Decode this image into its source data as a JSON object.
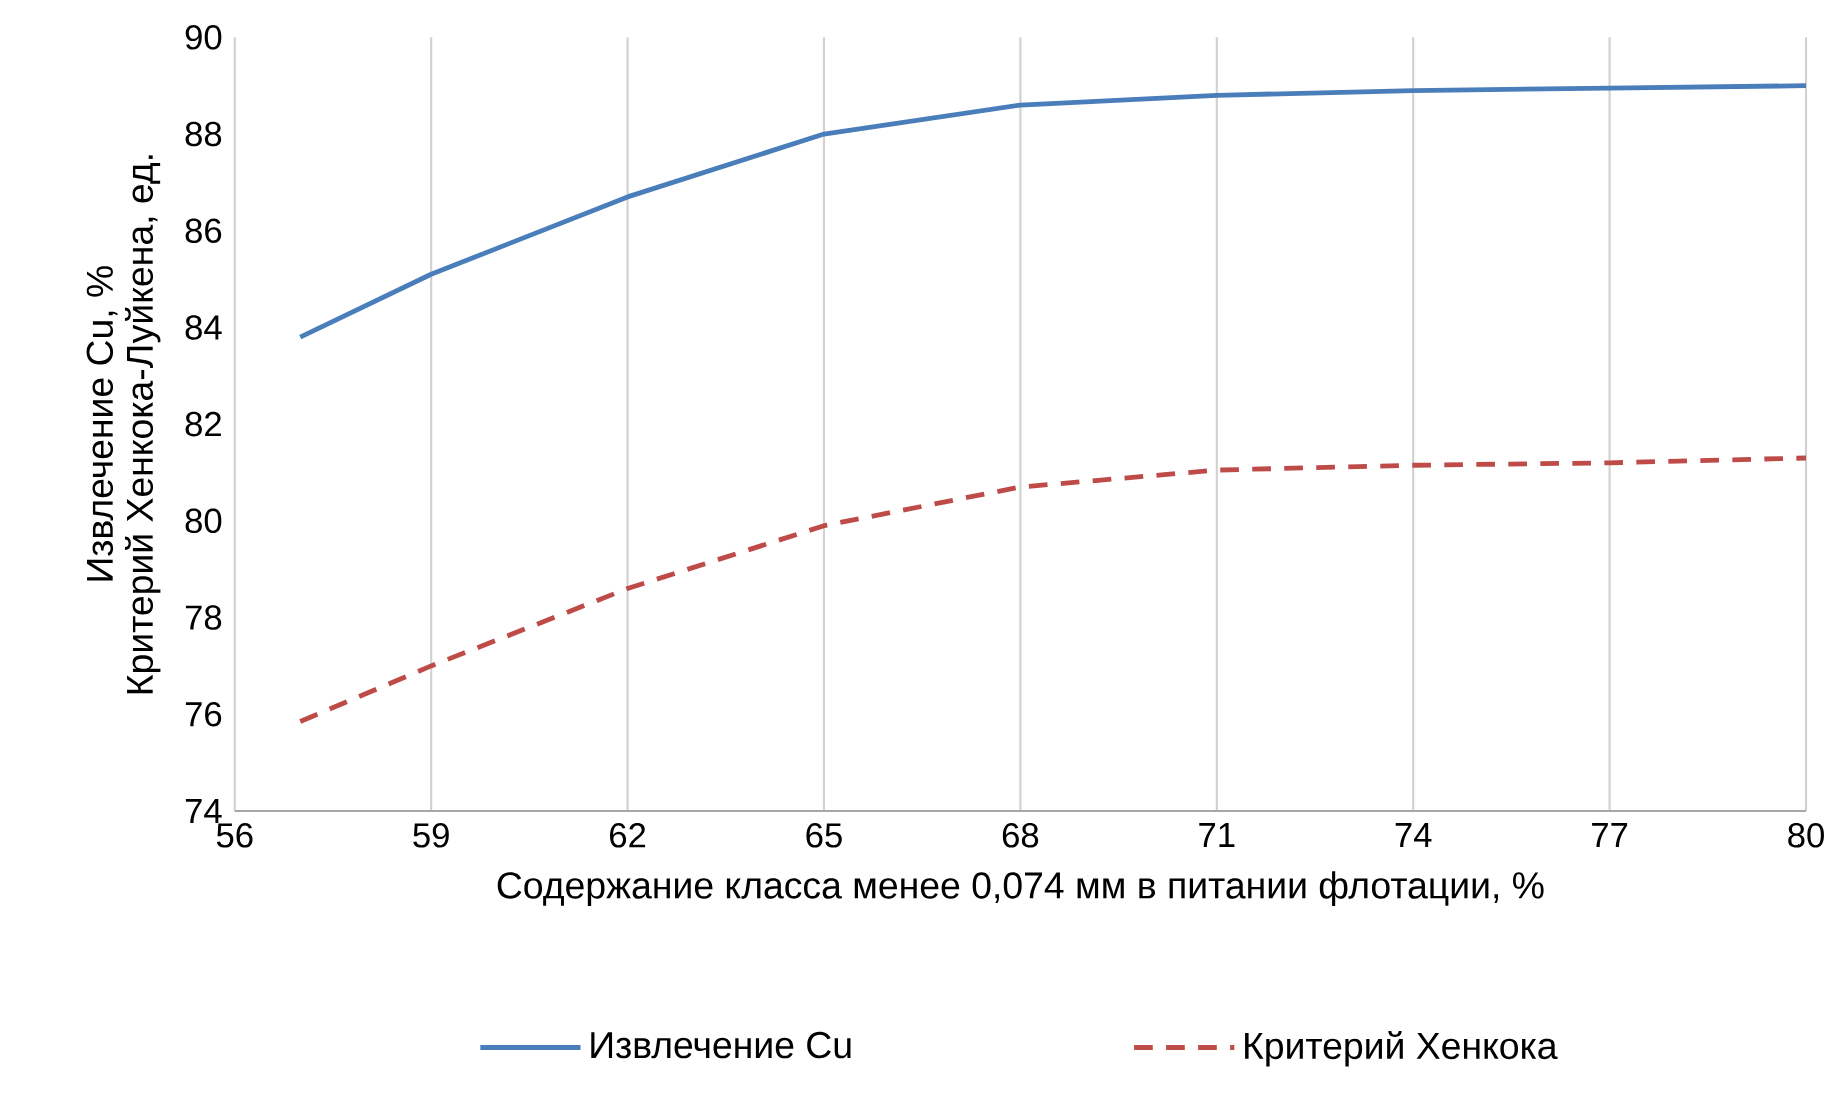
{
  "chart_data": {
    "type": "line",
    "xlabel": "Содержание класса менее 0,074 мм в питании флотации, %",
    "ylabel": [
      "Извлечение Cu, %",
      "Критерий Хенкока-Луйкена, ед."
    ],
    "x": [
      57,
      59,
      62,
      65,
      68,
      71,
      74,
      77,
      80
    ],
    "series": [
      {
        "name": "Извлечение Cu",
        "color": "#4a7ebb",
        "line_style": "solid",
        "values": [
          83.8,
          85.1,
          86.7,
          88.0,
          88.6,
          88.8,
          88.9,
          88.95,
          89.0
        ]
      },
      {
        "name": "Критерий Хенкока",
        "color": "#be4b48",
        "line_style": "dashed",
        "values": [
          75.85,
          77.0,
          78.6,
          79.9,
          80.7,
          81.05,
          81.15,
          81.2,
          81.3
        ]
      }
    ],
    "xlim": [
      56,
      80
    ],
    "ylim": [
      74,
      90
    ],
    "xticks": [
      56,
      59,
      62,
      65,
      68,
      71,
      74,
      77,
      80
    ],
    "yticks": [
      74,
      76,
      78,
      80,
      82,
      84,
      86,
      88,
      90
    ],
    "grid": "x",
    "legend": "bottom",
    "marker": "none"
  }
}
